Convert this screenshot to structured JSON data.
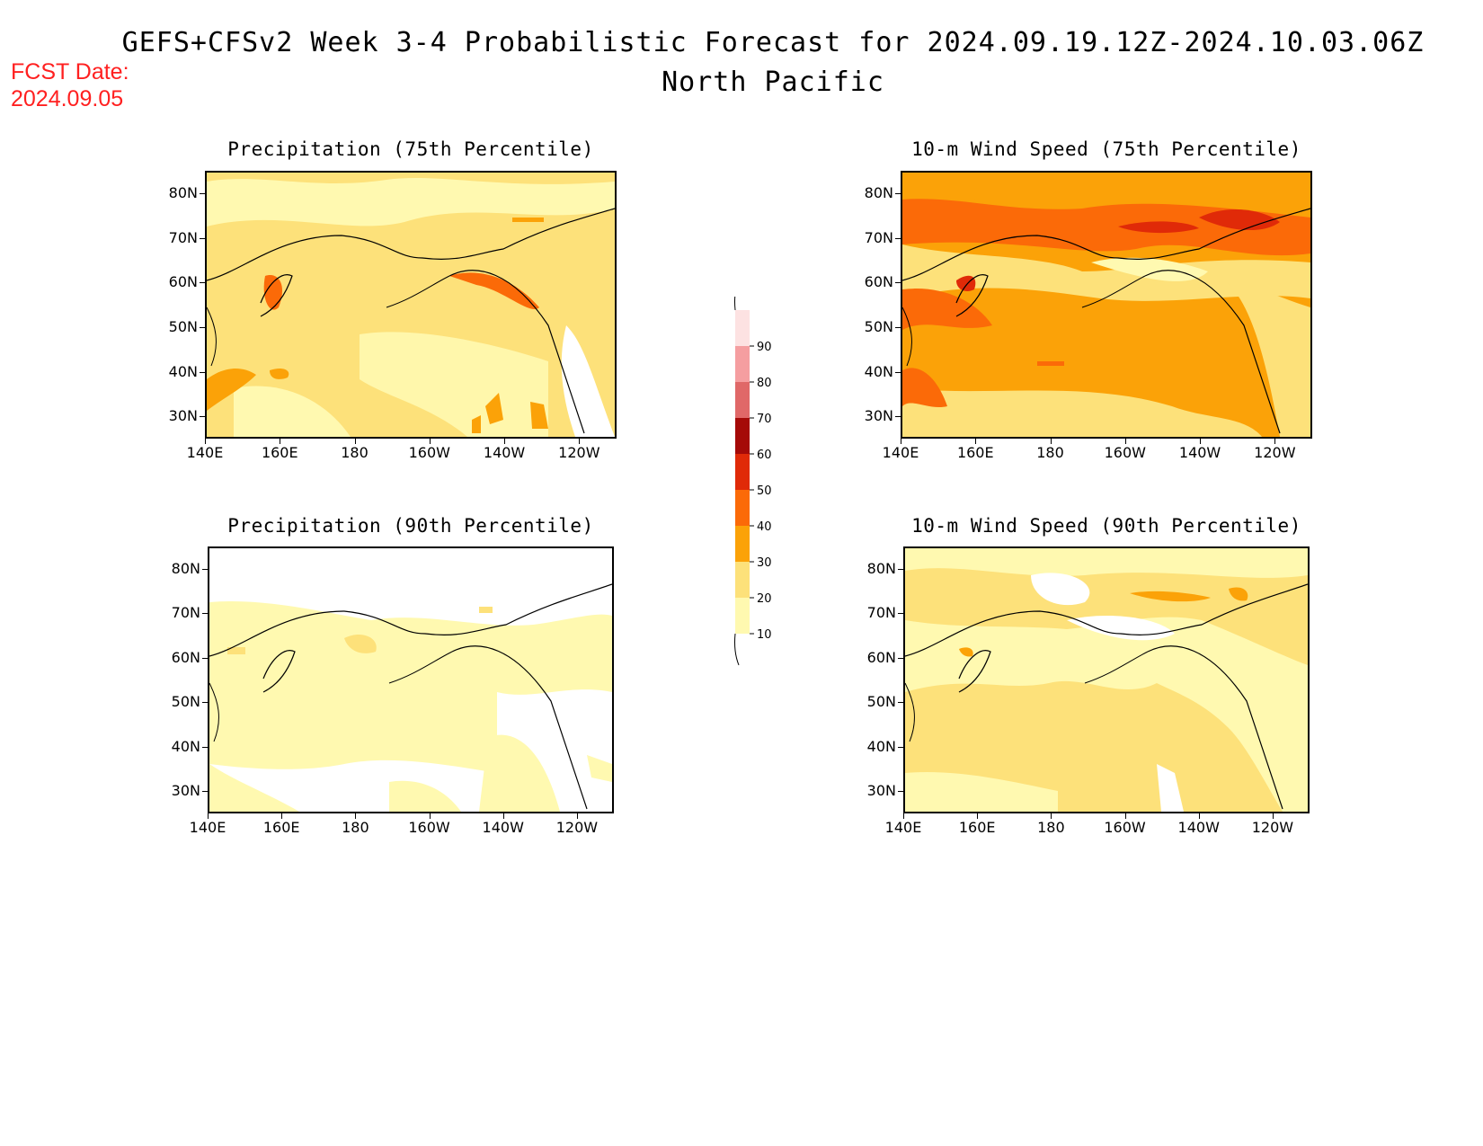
{
  "header": {
    "title": "GEFS+CFSv2 Week 3-4 Probabilistic Forecast for 2024.09.19.12Z-2024.10.03.06Z",
    "region": "North Pacific",
    "fcst_label": "FCST Date:",
    "fcst_date": "2024.09.05"
  },
  "colors": {
    "level_10": "#fff9b0",
    "level_20": "#fde17a",
    "level_30": "#fba208",
    "level_40": "#fb6a08",
    "level_50": "#e02a08",
    "level_60": "#a50a08",
    "level_70": "#e06868",
    "level_80": "#f59ea0",
    "level_90": "#fde2e2"
  },
  "colorbar": {
    "levels": [
      "10",
      "20",
      "30",
      "40",
      "50",
      "60",
      "70",
      "80",
      "90"
    ]
  },
  "axes": {
    "lon_labels": [
      "140E",
      "160E",
      "180",
      "160W",
      "140W",
      "120W"
    ],
    "lat_labels": [
      "80N",
      "70N",
      "60N",
      "50N",
      "40N",
      "30N"
    ]
  },
  "panels": [
    {
      "id": "precip75",
      "title": "Precipitation (75th Percentile)",
      "background_level": "20"
    },
    {
      "id": "wind75",
      "title": "10-m Wind Speed (75th Percentile)",
      "background_level": "30"
    },
    {
      "id": "precip90",
      "title": "Precipitation (90th Percentile)",
      "background_level": "10"
    },
    {
      "id": "wind90",
      "title": "10-m Wind Speed (90th Percentile)",
      "background_level": "20"
    }
  ]
}
